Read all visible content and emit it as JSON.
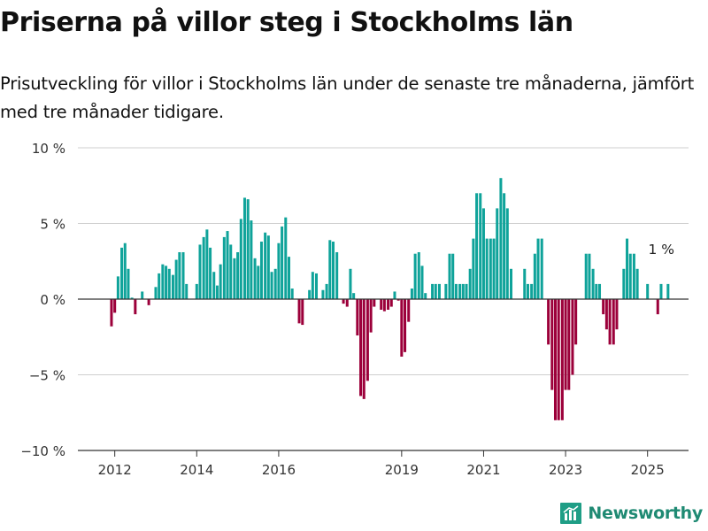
{
  "header": {
    "title": "Priserna på villor steg i Stockholms län",
    "subtitle": "Prisutveckling för villor i Stockholms län under de senaste tre månaderna, jämfört med tre månader tidigare."
  },
  "brand": {
    "name": "Newsworthy",
    "icon": "bar-chart-logo-icon",
    "color": "#1f9e86"
  },
  "colors": {
    "positive": "#0fa39a",
    "negative": "#9c003a",
    "grid": "#cfcfcf",
    "axis_text": "#333333"
  },
  "chart_data": {
    "type": "bar",
    "ylim": [
      -10,
      10
    ],
    "grid": true,
    "y_ticks": [
      {
        "value": 10,
        "label": "10 %"
      },
      {
        "value": 5,
        "label": "5 %"
      },
      {
        "value": 0,
        "label": "0 %"
      },
      {
        "value": -5,
        "label": "−5 %"
      },
      {
        "value": -10,
        "label": "−10 %"
      }
    ],
    "x_ticks": [
      {
        "label": "2012",
        "x": 2012.0
      },
      {
        "label": "2014",
        "x": 2014.0
      },
      {
        "label": "2016",
        "x": 2016.0
      },
      {
        "label": "2019",
        "x": 2019.0
      },
      {
        "label": "2021",
        "x": 2021.0
      },
      {
        "label": "2023",
        "x": 2023.0
      },
      {
        "label": "2025",
        "x": 2025.0
      }
    ],
    "annotation": {
      "text": "1 %",
      "x": 2025.25,
      "value": 1
    },
    "series": [
      {
        "x": 2011.92,
        "value": -1.8
      },
      {
        "x": 2012.0,
        "value": -0.9
      },
      {
        "x": 2012.08,
        "value": 1.5
      },
      {
        "x": 2012.17,
        "value": 3.4
      },
      {
        "x": 2012.25,
        "value": 3.7
      },
      {
        "x": 2012.33,
        "value": 2.0
      },
      {
        "x": 2012.42,
        "value": 0.1
      },
      {
        "x": 2012.5,
        "value": -1.0
      },
      {
        "x": 2012.67,
        "value": 0.5
      },
      {
        "x": 2012.83,
        "value": -0.4
      },
      {
        "x": 2013.0,
        "value": 0.8
      },
      {
        "x": 2013.08,
        "value": 1.7
      },
      {
        "x": 2013.17,
        "value": 2.3
      },
      {
        "x": 2013.25,
        "value": 2.2
      },
      {
        "x": 2013.33,
        "value": 2.0
      },
      {
        "x": 2013.42,
        "value": 1.6
      },
      {
        "x": 2013.5,
        "value": 2.6
      },
      {
        "x": 2013.58,
        "value": 3.1
      },
      {
        "x": 2013.67,
        "value": 3.1
      },
      {
        "x": 2013.75,
        "value": 1.0
      },
      {
        "x": 2014.0,
        "value": 1.0
      },
      {
        "x": 2014.08,
        "value": 3.6
      },
      {
        "x": 2014.17,
        "value": 4.1
      },
      {
        "x": 2014.25,
        "value": 4.6
      },
      {
        "x": 2014.33,
        "value": 3.4
      },
      {
        "x": 2014.42,
        "value": 1.8
      },
      {
        "x": 2014.5,
        "value": 0.9
      },
      {
        "x": 2014.58,
        "value": 2.3
      },
      {
        "x": 2014.67,
        "value": 4.1
      },
      {
        "x": 2014.75,
        "value": 4.5
      },
      {
        "x": 2014.83,
        "value": 3.6
      },
      {
        "x": 2014.92,
        "value": 2.7
      },
      {
        "x": 2015.0,
        "value": 3.1
      },
      {
        "x": 2015.08,
        "value": 5.3
      },
      {
        "x": 2015.17,
        "value": 6.7
      },
      {
        "x": 2015.25,
        "value": 6.6
      },
      {
        "x": 2015.33,
        "value": 5.2
      },
      {
        "x": 2015.42,
        "value": 2.7
      },
      {
        "x": 2015.5,
        "value": 2.2
      },
      {
        "x": 2015.58,
        "value": 3.8
      },
      {
        "x": 2015.67,
        "value": 4.4
      },
      {
        "x": 2015.75,
        "value": 4.2
      },
      {
        "x": 2015.83,
        "value": 1.8
      },
      {
        "x": 2015.92,
        "value": 2.0
      },
      {
        "x": 2016.0,
        "value": 3.7
      },
      {
        "x": 2016.08,
        "value": 4.8
      },
      {
        "x": 2016.17,
        "value": 5.4
      },
      {
        "x": 2016.25,
        "value": 2.8
      },
      {
        "x": 2016.33,
        "value": 0.7
      },
      {
        "x": 2016.5,
        "value": -1.6
      },
      {
        "x": 2016.58,
        "value": -1.7
      },
      {
        "x": 2016.75,
        "value": 0.6
      },
      {
        "x": 2016.83,
        "value": 1.8
      },
      {
        "x": 2016.92,
        "value": 1.7
      },
      {
        "x": 2017.08,
        "value": 0.6
      },
      {
        "x": 2017.17,
        "value": 1.0
      },
      {
        "x": 2017.25,
        "value": 3.9
      },
      {
        "x": 2017.33,
        "value": 3.8
      },
      {
        "x": 2017.42,
        "value": 3.1
      },
      {
        "x": 2017.58,
        "value": -0.3
      },
      {
        "x": 2017.67,
        "value": -0.5
      },
      {
        "x": 2017.75,
        "value": 2.0
      },
      {
        "x": 2017.83,
        "value": 0.4
      },
      {
        "x": 2017.92,
        "value": -2.4
      },
      {
        "x": 2018.0,
        "value": -6.4
      },
      {
        "x": 2018.08,
        "value": -6.6
      },
      {
        "x": 2018.17,
        "value": -5.4
      },
      {
        "x": 2018.25,
        "value": -2.2
      },
      {
        "x": 2018.33,
        "value": -0.5
      },
      {
        "x": 2018.5,
        "value": -0.7
      },
      {
        "x": 2018.58,
        "value": -0.8
      },
      {
        "x": 2018.67,
        "value": -0.7
      },
      {
        "x": 2018.75,
        "value": -0.5
      },
      {
        "x": 2018.83,
        "value": 0.5
      },
      {
        "x": 2018.92,
        "value": -0.1
      },
      {
        "x": 2019.0,
        "value": -3.8
      },
      {
        "x": 2019.08,
        "value": -3.5
      },
      {
        "x": 2019.17,
        "value": -1.5
      },
      {
        "x": 2019.25,
        "value": 0.7
      },
      {
        "x": 2019.33,
        "value": 3.0
      },
      {
        "x": 2019.42,
        "value": 3.1
      },
      {
        "x": 2019.5,
        "value": 2.2
      },
      {
        "x": 2019.58,
        "value": 0.4
      },
      {
        "x": 2019.75,
        "value": 1.0
      },
      {
        "x": 2019.83,
        "value": 1.0
      },
      {
        "x": 2019.92,
        "value": 1.0
      },
      {
        "x": 2020.08,
        "value": 1.0
      },
      {
        "x": 2020.17,
        "value": 3.0
      },
      {
        "x": 2020.25,
        "value": 3.0
      },
      {
        "x": 2020.33,
        "value": 1.0
      },
      {
        "x": 2020.42,
        "value": 1.0
      },
      {
        "x": 2020.5,
        "value": 1.0
      },
      {
        "x": 2020.58,
        "value": 1.0
      },
      {
        "x": 2020.67,
        "value": 2.0
      },
      {
        "x": 2020.75,
        "value": 4.0
      },
      {
        "x": 2020.83,
        "value": 7.0
      },
      {
        "x": 2020.92,
        "value": 7.0
      },
      {
        "x": 2021.0,
        "value": 6.0
      },
      {
        "x": 2021.08,
        "value": 4.0
      },
      {
        "x": 2021.17,
        "value": 4.0
      },
      {
        "x": 2021.25,
        "value": 4.0
      },
      {
        "x": 2021.33,
        "value": 6.0
      },
      {
        "x": 2021.42,
        "value": 8.0
      },
      {
        "x": 2021.5,
        "value": 7.0
      },
      {
        "x": 2021.58,
        "value": 6.0
      },
      {
        "x": 2021.67,
        "value": 2.0
      },
      {
        "x": 2022.0,
        "value": 2.0
      },
      {
        "x": 2022.08,
        "value": 1.0
      },
      {
        "x": 2022.17,
        "value": 1.0
      },
      {
        "x": 2022.25,
        "value": 3.0
      },
      {
        "x": 2022.33,
        "value": 4.0
      },
      {
        "x": 2022.42,
        "value": 4.0
      },
      {
        "x": 2022.5,
        "value": 0.0
      },
      {
        "x": 2022.58,
        "value": -3.0
      },
      {
        "x": 2022.67,
        "value": -6.0
      },
      {
        "x": 2022.75,
        "value": -8.0
      },
      {
        "x": 2022.83,
        "value": -8.0
      },
      {
        "x": 2022.92,
        "value": -8.0
      },
      {
        "x": 2023.0,
        "value": -6.0
      },
      {
        "x": 2023.08,
        "value": -6.0
      },
      {
        "x": 2023.17,
        "value": -5.0
      },
      {
        "x": 2023.25,
        "value": -3.0
      },
      {
        "x": 2023.5,
        "value": 3.0
      },
      {
        "x": 2023.58,
        "value": 3.0
      },
      {
        "x": 2023.67,
        "value": 2.0
      },
      {
        "x": 2023.75,
        "value": 1.0
      },
      {
        "x": 2023.83,
        "value": 1.0
      },
      {
        "x": 2023.92,
        "value": -1.0
      },
      {
        "x": 2024.0,
        "value": -2.0
      },
      {
        "x": 2024.08,
        "value": -3.0
      },
      {
        "x": 2024.17,
        "value": -3.0
      },
      {
        "x": 2024.25,
        "value": -2.0
      },
      {
        "x": 2024.42,
        "value": 2.0
      },
      {
        "x": 2024.5,
        "value": 4.0
      },
      {
        "x": 2024.58,
        "value": 3.0
      },
      {
        "x": 2024.67,
        "value": 3.0
      },
      {
        "x": 2024.75,
        "value": 2.0
      },
      {
        "x": 2025.0,
        "value": 1.0
      },
      {
        "x": 2025.25,
        "value": -1.0
      },
      {
        "x": 2025.33,
        "value": 1.0
      },
      {
        "x": 2025.5,
        "value": 1.0
      }
    ]
  }
}
